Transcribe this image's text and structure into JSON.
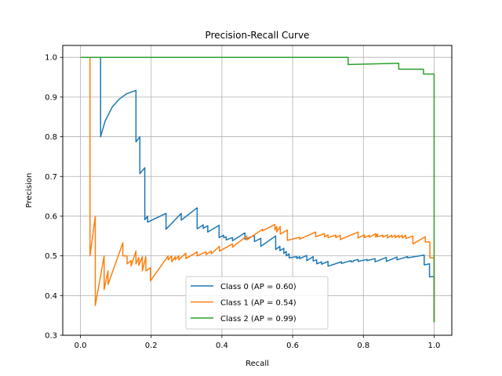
{
  "chart_data": {
    "type": "line",
    "title": "Precision-Recall Curve",
    "xlabel": "Recall",
    "ylabel": "Precision",
    "xlim": [
      -0.05,
      1.05
    ],
    "ylim": [
      0.3,
      1.03
    ],
    "xticks": [
      0.0,
      0.2,
      0.4,
      0.6,
      0.8,
      1.0
    ],
    "xtick_labels": [
      "0.0",
      "0.2",
      "0.4",
      "0.6",
      "0.8",
      "1.0"
    ],
    "yticks": [
      0.3,
      0.4,
      0.5,
      0.6,
      0.7,
      0.8,
      0.9,
      1.0
    ],
    "ytick_labels": [
      "0.3",
      "0.4",
      "0.5",
      "0.6",
      "0.7",
      "0.8",
      "0.9",
      "1.0"
    ],
    "grid": true,
    "legend_position": "lower center",
    "series": [
      {
        "name": "Class 0 (AP = 0.60)",
        "color": "#1f77b4",
        "points": [
          [
            0.0,
            1.0
          ],
          [
            0.057,
            1.0
          ],
          [
            0.057,
            0.8
          ],
          [
            0.07,
            0.84
          ],
          [
            0.09,
            0.875
          ],
          [
            0.11,
            0.895
          ],
          [
            0.13,
            0.908
          ],
          [
            0.157,
            0.917
          ],
          [
            0.157,
            0.787
          ],
          [
            0.168,
            0.8
          ],
          [
            0.168,
            0.707
          ],
          [
            0.182,
            0.722
          ],
          [
            0.182,
            0.591
          ],
          [
            0.19,
            0.6
          ],
          [
            0.19,
            0.585
          ],
          [
            0.242,
            0.607
          ],
          [
            0.242,
            0.567
          ],
          [
            0.285,
            0.607
          ],
          [
            0.285,
            0.59
          ],
          [
            0.33,
            0.621
          ],
          [
            0.33,
            0.568
          ],
          [
            0.347,
            0.578
          ],
          [
            0.347,
            0.569
          ],
          [
            0.36,
            0.576
          ],
          [
            0.36,
            0.56
          ],
          [
            0.392,
            0.577
          ],
          [
            0.392,
            0.546
          ],
          [
            0.405,
            0.552
          ],
          [
            0.405,
            0.546
          ],
          [
            0.412,
            0.548
          ],
          [
            0.412,
            0.54
          ],
          [
            0.43,
            0.546
          ],
          [
            0.43,
            0.538
          ],
          [
            0.465,
            0.558
          ],
          [
            0.465,
            0.542
          ],
          [
            0.492,
            0.551
          ],
          [
            0.492,
            0.536
          ],
          [
            0.51,
            0.544
          ],
          [
            0.51,
            0.524
          ],
          [
            0.552,
            0.55
          ],
          [
            0.552,
            0.516
          ],
          [
            0.564,
            0.524
          ],
          [
            0.564,
            0.513
          ],
          [
            0.575,
            0.519
          ],
          [
            0.575,
            0.506
          ],
          [
            0.582,
            0.511
          ],
          [
            0.582,
            0.5
          ],
          [
            0.59,
            0.505
          ],
          [
            0.59,
            0.495
          ],
          [
            0.612,
            0.498
          ],
          [
            0.612,
            0.493
          ],
          [
            0.62,
            0.498
          ],
          [
            0.62,
            0.493
          ],
          [
            0.64,
            0.501
          ],
          [
            0.64,
            0.488
          ],
          [
            0.658,
            0.498
          ],
          [
            0.658,
            0.487
          ],
          [
            0.668,
            0.49
          ],
          [
            0.668,
            0.48
          ],
          [
            0.682,
            0.485
          ],
          [
            0.682,
            0.479
          ],
          [
            0.7,
            0.486
          ],
          [
            0.7,
            0.474
          ],
          [
            0.738,
            0.485
          ],
          [
            0.738,
            0.481
          ],
          [
            0.765,
            0.488
          ],
          [
            0.765,
            0.485
          ],
          [
            0.772,
            0.486
          ],
          [
            0.772,
            0.488
          ],
          [
            0.785,
            0.491
          ],
          [
            0.785,
            0.486
          ],
          [
            0.81,
            0.491
          ],
          [
            0.81,
            0.488
          ],
          [
            0.833,
            0.493
          ],
          [
            0.833,
            0.485
          ],
          [
            0.865,
            0.496
          ],
          [
            0.865,
            0.486
          ],
          [
            0.895,
            0.497
          ],
          [
            0.895,
            0.49
          ],
          [
            0.925,
            0.498
          ],
          [
            0.925,
            0.495
          ],
          [
            0.972,
            0.502
          ],
          [
            0.972,
            0.477
          ],
          [
            0.987,
            0.48
          ],
          [
            0.987,
            0.447
          ],
          [
            1.0,
            0.448
          ],
          [
            1.0,
            0.333
          ]
        ]
      },
      {
        "name": "Class 1 (AP = 0.54)",
        "color": "#ff7f0e",
        "points": [
          [
            0.027,
            1.0
          ],
          [
            0.027,
            0.5
          ],
          [
            0.042,
            0.6
          ],
          [
            0.042,
            0.375
          ],
          [
            0.067,
            0.5
          ],
          [
            0.067,
            0.416
          ],
          [
            0.078,
            0.462
          ],
          [
            0.078,
            0.428
          ],
          [
            0.12,
            0.533
          ],
          [
            0.12,
            0.5
          ],
          [
            0.132,
            0.5
          ],
          [
            0.132,
            0.48
          ],
          [
            0.143,
            0.488
          ],
          [
            0.143,
            0.474
          ],
          [
            0.157,
            0.512
          ],
          [
            0.157,
            0.48
          ],
          [
            0.165,
            0.496
          ],
          [
            0.165,
            0.476
          ],
          [
            0.175,
            0.498
          ],
          [
            0.175,
            0.462
          ],
          [
            0.185,
            0.498
          ],
          [
            0.185,
            0.462
          ],
          [
            0.198,
            0.47
          ],
          [
            0.198,
            0.437
          ],
          [
            0.248,
            0.5
          ],
          [
            0.248,
            0.49
          ],
          [
            0.258,
            0.5
          ],
          [
            0.258,
            0.485
          ],
          [
            0.268,
            0.498
          ],
          [
            0.268,
            0.49
          ],
          [
            0.278,
            0.5
          ],
          [
            0.278,
            0.49
          ],
          [
            0.298,
            0.507
          ],
          [
            0.298,
            0.493
          ],
          [
            0.33,
            0.51
          ],
          [
            0.33,
            0.5
          ],
          [
            0.355,
            0.51
          ],
          [
            0.355,
            0.503
          ],
          [
            0.37,
            0.512
          ],
          [
            0.37,
            0.505
          ],
          [
            0.393,
            0.524
          ],
          [
            0.393,
            0.512
          ],
          [
            0.43,
            0.53
          ],
          [
            0.43,
            0.522
          ],
          [
            0.47,
            0.55
          ],
          [
            0.47,
            0.54
          ],
          [
            0.515,
            0.567
          ],
          [
            0.515,
            0.563
          ],
          [
            0.55,
            0.579
          ],
          [
            0.55,
            0.565
          ],
          [
            0.555,
            0.574
          ],
          [
            0.555,
            0.56
          ],
          [
            0.565,
            0.574
          ],
          [
            0.565,
            0.555
          ],
          [
            0.585,
            0.565
          ],
          [
            0.585,
            0.539
          ],
          [
            0.62,
            0.547
          ],
          [
            0.62,
            0.542
          ],
          [
            0.665,
            0.56
          ],
          [
            0.665,
            0.548
          ],
          [
            0.69,
            0.556
          ],
          [
            0.69,
            0.548
          ],
          [
            0.7,
            0.553
          ],
          [
            0.7,
            0.546
          ],
          [
            0.722,
            0.552
          ],
          [
            0.722,
            0.546
          ],
          [
            0.735,
            0.552
          ],
          [
            0.735,
            0.541
          ],
          [
            0.785,
            0.56
          ],
          [
            0.785,
            0.545
          ],
          [
            0.803,
            0.553
          ],
          [
            0.803,
            0.546
          ],
          [
            0.817,
            0.552
          ],
          [
            0.817,
            0.547
          ],
          [
            0.835,
            0.556
          ],
          [
            0.835,
            0.547
          ],
          [
            0.84,
            0.555
          ],
          [
            0.84,
            0.548
          ],
          [
            0.855,
            0.552
          ],
          [
            0.855,
            0.547
          ],
          [
            0.868,
            0.553
          ],
          [
            0.868,
            0.545
          ],
          [
            0.88,
            0.552
          ],
          [
            0.88,
            0.547
          ],
          [
            0.89,
            0.552
          ],
          [
            0.89,
            0.546
          ],
          [
            0.9,
            0.552
          ],
          [
            0.9,
            0.546
          ],
          [
            0.91,
            0.552
          ],
          [
            0.91,
            0.545
          ],
          [
            0.92,
            0.552
          ],
          [
            0.92,
            0.544
          ],
          [
            0.94,
            0.55
          ],
          [
            0.94,
            0.53
          ],
          [
            0.975,
            0.548
          ],
          [
            0.975,
            0.535
          ],
          [
            0.988,
            0.535
          ],
          [
            0.988,
            0.495
          ],
          [
            1.0,
            0.495
          ],
          [
            1.0,
            0.333
          ]
        ]
      },
      {
        "name": "Class 2 (AP = 0.99)",
        "color": "#2ca02c",
        "points": [
          [
            0.0,
            1.0
          ],
          [
            0.757,
            1.0
          ],
          [
            0.757,
            0.982
          ],
          [
            0.9,
            0.985
          ],
          [
            0.9,
            0.97
          ],
          [
            0.97,
            0.97
          ],
          [
            0.97,
            0.958
          ],
          [
            1.0,
            0.958
          ],
          [
            1.0,
            0.333
          ]
        ]
      }
    ]
  }
}
